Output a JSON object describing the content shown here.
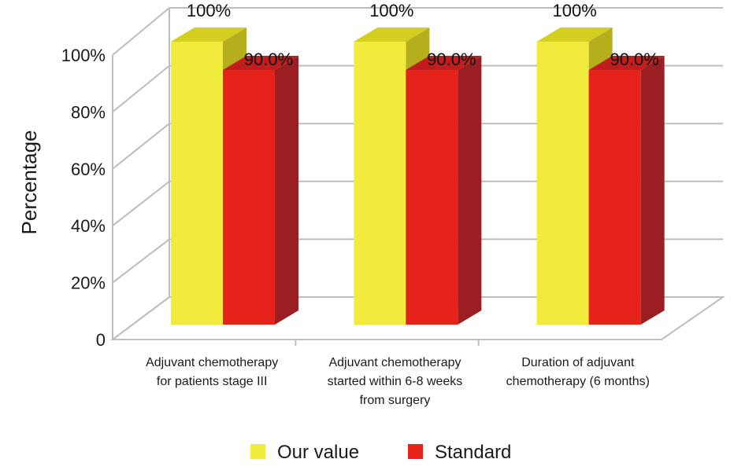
{
  "chart_data": {
    "type": "bar",
    "ylabel": "Percentage",
    "ylim": [
      0,
      100
    ],
    "ytick_labels": [
      "0",
      "20%",
      "40%",
      "60%",
      "80%",
      "100%"
    ],
    "grid": true,
    "style": "3d",
    "legend_placement": "bottom",
    "categories": [
      [
        "Adjuvant chemotherapy",
        "for patients stage III"
      ],
      [
        "Adjuvant chemotherapy",
        "started within 6-8 weeks",
        "from surgery"
      ],
      [
        "Duration of adjuvant",
        "chemotherapy (6 months)"
      ]
    ],
    "series": [
      {
        "name": "Our value",
        "values": [
          100,
          100,
          100
        ],
        "labels": [
          "100%",
          "100%",
          "100%"
        ],
        "color": "#F0EB3C",
        "side_color": "#B5AF1E",
        "top_color": "#D4CE1E"
      },
      {
        "name": "Standard",
        "values": [
          90,
          90,
          90
        ],
        "labels": [
          "90.0%",
          "90.0%",
          "90.0%"
        ],
        "color": "#E5231B",
        "side_color": "#9B1E22",
        "top_color": "#C21D1C"
      }
    ]
  }
}
